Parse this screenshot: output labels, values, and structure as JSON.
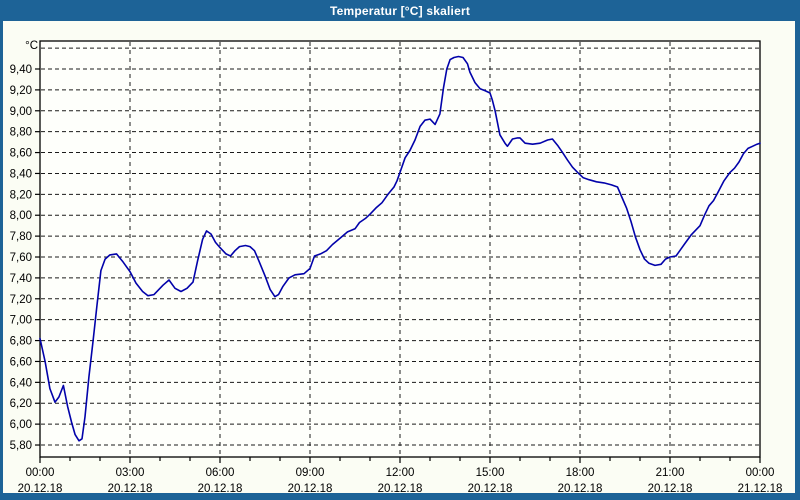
{
  "window": {
    "title": "Temperatur [°C] skaliert"
  },
  "chart_data": {
    "type": "line",
    "title": "Temperatur [°C] skaliert",
    "unit_label": "°C",
    "legend_position": "none",
    "grid": true,
    "colors": {
      "line": "#0202AA",
      "grid": "#1B1B1B",
      "axis": "#000000",
      "plot_background": "#FEFFFB",
      "window_frame": "#1D6397",
      "client_background": "#FBFDF4",
      "label_text": "#000000"
    },
    "x_axis": {
      "range_hours": [
        0,
        24
      ],
      "minor_tick_interval_hours": 1,
      "major_tick_interval_hours": 3,
      "major_ticks": [
        {
          "hour": 0,
          "time": "00:00",
          "date": "20.12.18"
        },
        {
          "hour": 3,
          "time": "03:00",
          "date": "20.12.18"
        },
        {
          "hour": 6,
          "time": "06:00",
          "date": "20.12.18"
        },
        {
          "hour": 9,
          "time": "09:00",
          "date": "20.12.18"
        },
        {
          "hour": 12,
          "time": "12:00",
          "date": "20.12.18"
        },
        {
          "hour": 15,
          "time": "15:00",
          "date": "20.12.18"
        },
        {
          "hour": 18,
          "time": "18:00",
          "date": "20.12.18"
        },
        {
          "hour": 21,
          "time": "21:00",
          "date": "20.12.18"
        },
        {
          "hour": 24,
          "time": "00:00",
          "date": "21.12.18"
        }
      ]
    },
    "y_axis": {
      "unit": "°C",
      "grid_values": [
        5.8,
        6.0,
        6.2,
        6.4,
        6.6,
        6.8,
        7.0,
        7.2,
        7.4,
        7.6,
        7.8,
        8.0,
        8.2,
        8.4,
        8.6,
        8.8,
        9.0,
        9.2,
        9.4,
        9.6
      ],
      "ticks": [
        {
          "value": 9.4,
          "label": "9,40"
        },
        {
          "value": 9.2,
          "label": "9,20"
        },
        {
          "value": 9.0,
          "label": "9,00"
        },
        {
          "value": 8.8,
          "label": "8,80"
        },
        {
          "value": 8.6,
          "label": "8,60"
        },
        {
          "value": 8.4,
          "label": "8,40"
        },
        {
          "value": 8.2,
          "label": "8,20"
        },
        {
          "value": 8.0,
          "label": "8,00"
        },
        {
          "value": 7.8,
          "label": "7,80"
        },
        {
          "value": 7.6,
          "label": "7,60"
        },
        {
          "value": 7.4,
          "label": "7,40"
        },
        {
          "value": 7.2,
          "label": "7,20"
        },
        {
          "value": 7.0,
          "label": "7,00"
        },
        {
          "value": 6.8,
          "label": "6,80"
        },
        {
          "value": 6.6,
          "label": "6,60"
        },
        {
          "value": 6.4,
          "label": "6,40"
        },
        {
          "value": 6.2,
          "label": "6,20"
        },
        {
          "value": 6.0,
          "label": "6,00"
        },
        {
          "value": 5.8,
          "label": "5,80"
        }
      ]
    },
    "series": [
      {
        "name": "Temperatur",
        "points": [
          [
            0.0,
            6.82
          ],
          [
            0.17,
            6.6
          ],
          [
            0.33,
            6.34
          ],
          [
            0.5,
            6.21
          ],
          [
            0.63,
            6.26
          ],
          [
            0.78,
            6.37
          ],
          [
            0.92,
            6.17
          ],
          [
            1.05,
            6.02
          ],
          [
            1.17,
            5.9
          ],
          [
            1.3,
            5.84
          ],
          [
            1.4,
            5.86
          ],
          [
            1.5,
            6.07
          ],
          [
            1.63,
            6.45
          ],
          [
            1.77,
            6.8
          ],
          [
            1.9,
            7.14
          ],
          [
            2.03,
            7.47
          ],
          [
            2.17,
            7.58
          ],
          [
            2.33,
            7.62
          ],
          [
            2.55,
            7.63
          ],
          [
            2.75,
            7.56
          ],
          [
            3.0,
            7.46
          ],
          [
            3.2,
            7.35
          ],
          [
            3.42,
            7.27
          ],
          [
            3.6,
            7.23
          ],
          [
            3.8,
            7.24
          ],
          [
            4.1,
            7.33
          ],
          [
            4.3,
            7.38
          ],
          [
            4.5,
            7.3
          ],
          [
            4.7,
            7.27
          ],
          [
            4.9,
            7.3
          ],
          [
            5.1,
            7.36
          ],
          [
            5.25,
            7.56
          ],
          [
            5.42,
            7.77
          ],
          [
            5.55,
            7.85
          ],
          [
            5.7,
            7.82
          ],
          [
            5.85,
            7.74
          ],
          [
            6.0,
            7.69
          ],
          [
            6.2,
            7.63
          ],
          [
            6.35,
            7.61
          ],
          [
            6.5,
            7.66
          ],
          [
            6.65,
            7.7
          ],
          [
            6.85,
            7.71
          ],
          [
            7.0,
            7.7
          ],
          [
            7.15,
            7.66
          ],
          [
            7.3,
            7.56
          ],
          [
            7.5,
            7.42
          ],
          [
            7.67,
            7.29
          ],
          [
            7.83,
            7.22
          ],
          [
            7.95,
            7.24
          ],
          [
            8.1,
            7.32
          ],
          [
            8.3,
            7.4
          ],
          [
            8.5,
            7.43
          ],
          [
            8.8,
            7.44
          ],
          [
            9.0,
            7.49
          ],
          [
            9.15,
            7.61
          ],
          [
            9.35,
            7.63
          ],
          [
            9.55,
            7.66
          ],
          [
            9.75,
            7.72
          ],
          [
            10.0,
            7.78
          ],
          [
            10.25,
            7.84
          ],
          [
            10.5,
            7.87
          ],
          [
            10.65,
            7.93
          ],
          [
            10.85,
            7.97
          ],
          [
            11.0,
            8.01
          ],
          [
            11.2,
            8.07
          ],
          [
            11.4,
            8.12
          ],
          [
            11.6,
            8.2
          ],
          [
            11.8,
            8.27
          ],
          [
            11.9,
            8.33
          ],
          [
            12.0,
            8.41
          ],
          [
            12.17,
            8.55
          ],
          [
            12.33,
            8.62
          ],
          [
            12.5,
            8.72
          ],
          [
            12.67,
            8.85
          ],
          [
            12.83,
            8.91
          ],
          [
            13.0,
            8.92
          ],
          [
            13.17,
            8.87
          ],
          [
            13.33,
            8.97
          ],
          [
            13.45,
            9.22
          ],
          [
            13.56,
            9.4
          ],
          [
            13.67,
            9.49
          ],
          [
            13.8,
            9.51
          ],
          [
            13.95,
            9.52
          ],
          [
            14.1,
            9.51
          ],
          [
            14.25,
            9.45
          ],
          [
            14.33,
            9.37
          ],
          [
            14.5,
            9.27
          ],
          [
            14.67,
            9.21
          ],
          [
            14.85,
            9.19
          ],
          [
            15.0,
            9.17
          ],
          [
            15.08,
            9.1
          ],
          [
            15.17,
            9.0
          ],
          [
            15.33,
            8.77
          ],
          [
            15.5,
            8.69
          ],
          [
            15.58,
            8.66
          ],
          [
            15.75,
            8.73
          ],
          [
            15.92,
            8.74
          ],
          [
            16.0,
            8.74
          ],
          [
            16.17,
            8.69
          ],
          [
            16.42,
            8.68
          ],
          [
            16.67,
            8.69
          ],
          [
            16.92,
            8.72
          ],
          [
            17.08,
            8.73
          ],
          [
            17.25,
            8.67
          ],
          [
            17.42,
            8.6
          ],
          [
            17.58,
            8.53
          ],
          [
            17.75,
            8.46
          ],
          [
            17.92,
            8.41
          ],
          [
            18.1,
            8.36
          ],
          [
            18.3,
            8.34
          ],
          [
            18.55,
            8.32
          ],
          [
            18.8,
            8.31
          ],
          [
            19.05,
            8.29
          ],
          [
            19.25,
            8.27
          ],
          [
            19.4,
            8.17
          ],
          [
            19.55,
            8.07
          ],
          [
            19.7,
            7.94
          ],
          [
            19.85,
            7.79
          ],
          [
            20.0,
            7.67
          ],
          [
            20.15,
            7.58
          ],
          [
            20.3,
            7.54
          ],
          [
            20.5,
            7.52
          ],
          [
            20.7,
            7.53
          ],
          [
            20.85,
            7.58
          ],
          [
            21.0,
            7.6
          ],
          [
            21.2,
            7.61
          ],
          [
            21.35,
            7.67
          ],
          [
            21.5,
            7.73
          ],
          [
            21.7,
            7.81
          ],
          [
            21.9,
            7.87
          ],
          [
            22.0,
            7.9
          ],
          [
            22.15,
            8.0
          ],
          [
            22.3,
            8.09
          ],
          [
            22.45,
            8.14
          ],
          [
            22.6,
            8.22
          ],
          [
            22.8,
            8.33
          ],
          [
            23.0,
            8.41
          ],
          [
            23.15,
            8.45
          ],
          [
            23.3,
            8.51
          ],
          [
            23.45,
            8.59
          ],
          [
            23.6,
            8.64
          ],
          [
            23.75,
            8.66
          ],
          [
            23.9,
            8.68
          ],
          [
            24.0,
            8.69
          ]
        ]
      }
    ]
  }
}
